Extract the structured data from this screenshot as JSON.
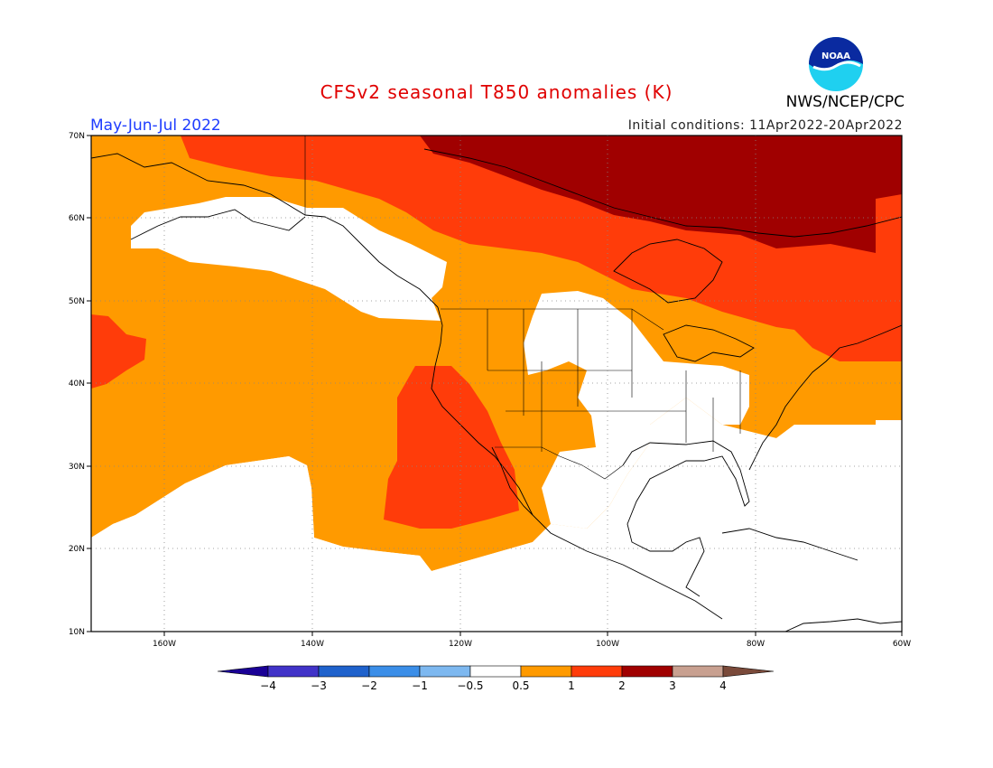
{
  "header": {
    "title": "CFSv2 seasonal T850 anomalies (K)",
    "agency": "NWS/NCEP/CPC",
    "logo_text": "NOAA",
    "period": "May-Jun-Jul 2022",
    "initial_conditions": "Initial conditions: 11Apr2022-20Apr2022"
  },
  "map": {
    "lat_labels": [
      "70N",
      "60N",
      "50N",
      "40N",
      "30N",
      "20N",
      "10N"
    ],
    "lon_labels": [
      "160W",
      "140W",
      "120W",
      "100W",
      "80W",
      "60W"
    ],
    "lon_range": [
      -170,
      -60
    ],
    "lat_range": [
      10,
      70
    ],
    "grid": true
  },
  "colorbar": {
    "labels": [
      "−4",
      "−3",
      "−2",
      "−1",
      "−0.5",
      "0.5",
      "1",
      "2",
      "3",
      "4"
    ],
    "colors": [
      "#1a0096",
      "#4133c8",
      "#1f62cc",
      "#3b8ee8",
      "#7db8f0",
      "#ffffff",
      "#ff9a00",
      "#ff3c0a",
      "#a00000",
      "#c8a090",
      "#7a4a3a"
    ]
  },
  "anomaly_colors": {
    "0.5-1": "#ff9a00",
    "1-2": "#ff3c0a",
    "2-3": "#a00000"
  }
}
